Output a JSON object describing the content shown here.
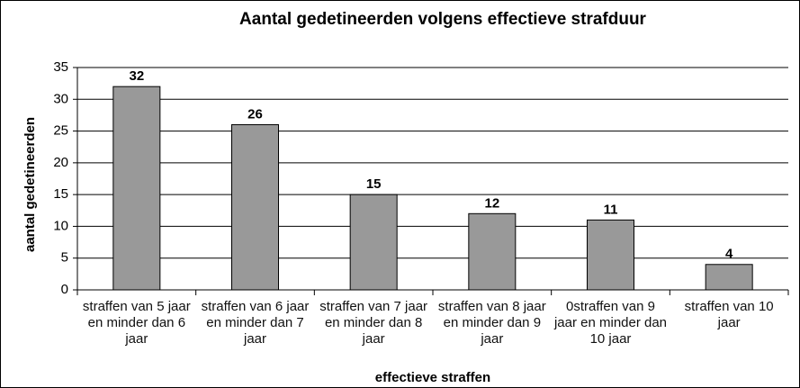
{
  "chart_data": {
    "type": "bar",
    "title": "Aantal gedetineerden volgens effectieve strafduur",
    "categories": [
      "straffen van 5 jaar en minder dan 6 jaar",
      "straffen van 6 jaar en minder dan 7 jaar",
      "straffen van 7 jaar en minder dan 8 jaar",
      "straffen van 8 jaar en minder dan 9 jaar",
      "0straffen van 9 jaar en minder dan 10 jaar",
      "straffen van 10 jaar"
    ],
    "values": [
      32,
      26,
      15,
      12,
      11,
      4
    ],
    "color": "#999999",
    "x_label": "effectieve straffen",
    "y_label": "aantal gedetineerden",
    "ylim": [
      0,
      35
    ],
    "yticks": [
      0,
      5,
      10,
      15,
      20,
      25,
      30,
      35
    ],
    "grid": true
  }
}
